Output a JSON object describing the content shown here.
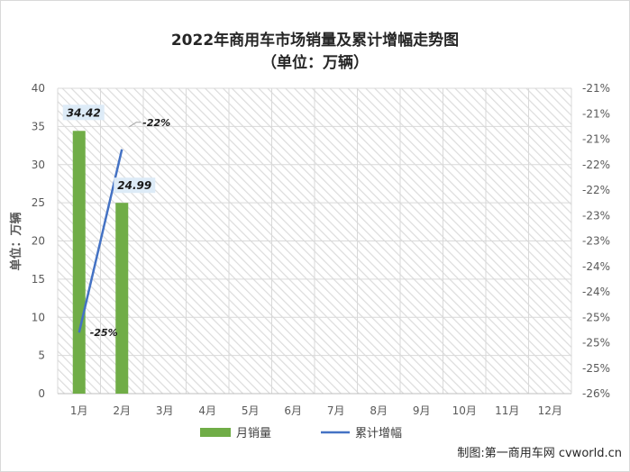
{
  "chart_data": {
    "type": "bar",
    "title": "2022年商用车市场销量及累计增幅走势图",
    "subtitle": "（单位：万辆）",
    "ylabel": "单位：万辆",
    "categories": [
      "1月",
      "2月",
      "3月",
      "4月",
      "5月",
      "6月",
      "7月",
      "8月",
      "9月",
      "10月",
      "11月",
      "12月"
    ],
    "series": [
      {
        "name": "月销量",
        "type": "bar",
        "axis": "left",
        "color": "#70ad47",
        "values": [
          34.42,
          24.99,
          null,
          null,
          null,
          null,
          null,
          null,
          null,
          null,
          null,
          null
        ],
        "labels": [
          "34.42",
          "24.99"
        ]
      },
      {
        "name": "累计增幅",
        "type": "line",
        "axis": "right",
        "color": "#4472c4",
        "values": [
          -25.0,
          -22.0,
          null,
          null,
          null,
          null,
          null,
          null,
          null,
          null,
          null,
          null
        ],
        "labels": [
          "-25%",
          "-22%"
        ]
      }
    ],
    "ylim": [
      0,
      40
    ],
    "yticks": [
      "0",
      "5",
      "10",
      "15",
      "20",
      "25",
      "30",
      "35",
      "40"
    ],
    "y2lim": [
      -26,
      -21
    ],
    "y2ticks": [
      "-26%",
      "-25%",
      "-25%",
      "-25%",
      "-24%",
      "-24%",
      "-23%",
      "-23%",
      "-22%",
      "-22%",
      "-21%",
      "-21%",
      "-21%"
    ],
    "legend_position": "bottom",
    "grid": true
  },
  "credit": "制图:第一商用车网 cvworld.cn"
}
